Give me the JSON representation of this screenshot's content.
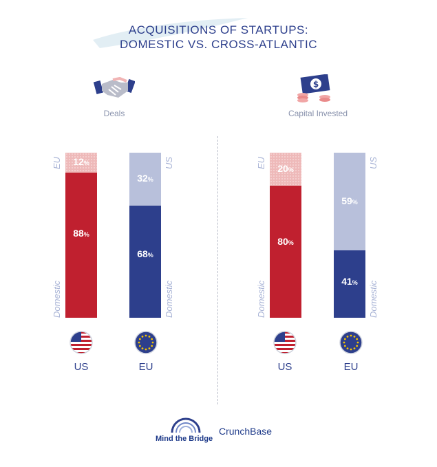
{
  "title_line1": "ACQUISITIONS OF STARTUPS:",
  "title_line2": "DOMESTIC VS. CROSS-ATLANTIC",
  "colors": {
    "us_domestic": "#c0202f",
    "us_cross": "#eeb9b9",
    "eu_domestic": "#2d3f8c",
    "eu_cross": "#b8c0db",
    "title": "#2d3f8c"
  },
  "icons": {
    "deals": "handshake-icon",
    "capital": "money-icon"
  },
  "logos": {
    "mtb": "Mind the Bridge",
    "cb": "CrunchBase"
  },
  "chart_data": [
    {
      "type": "bar",
      "title": "Deals",
      "categories": [
        "US",
        "EU"
      ],
      "stacked": true,
      "series": [
        {
          "name": "Domestic",
          "values": [
            88,
            68
          ]
        },
        {
          "name": "Cross-Atlantic",
          "values": [
            12,
            32
          ]
        }
      ],
      "labels": {
        "us_cross": "EU",
        "us_domestic": "Domestic",
        "eu_cross": "US",
        "eu_domestic": "Domestic",
        "us_top_pct": "12",
        "us_bottom_pct": "88",
        "eu_top_pct": "32",
        "eu_bottom_pct": "68",
        "pct_sign": "%"
      },
      "ylim": [
        0,
        100
      ]
    },
    {
      "type": "bar",
      "title": "Capital Invested",
      "categories": [
        "US",
        "EU"
      ],
      "stacked": true,
      "series": [
        {
          "name": "Domestic",
          "values": [
            80,
            41
          ]
        },
        {
          "name": "Cross-Atlantic",
          "values": [
            20,
            59
          ]
        }
      ],
      "labels": {
        "us_cross": "EU",
        "us_domestic": "Domestic",
        "eu_cross": "US",
        "eu_domestic": "Domestic",
        "us_top_pct": "20",
        "us_bottom_pct": "80",
        "eu_top_pct": "59",
        "eu_bottom_pct": "41",
        "pct_sign": "%"
      },
      "ylim": [
        0,
        100
      ]
    }
  ]
}
